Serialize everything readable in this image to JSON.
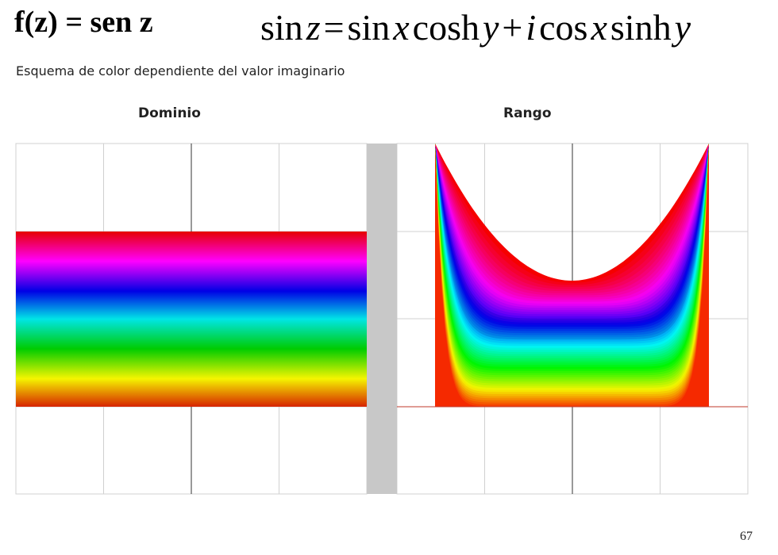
{
  "header": {
    "title": "f(z) = sen z",
    "formula": [
      "sin",
      "z",
      "=",
      "sin",
      "x",
      "cosh",
      "y",
      "+",
      "i",
      "cos",
      "x",
      "sinh",
      "y"
    ],
    "subtitle": "Esquema de color dependiente del valor imaginario"
  },
  "panels": [
    {
      "label": "Dominio"
    },
    {
      "label": "Rango"
    }
  ],
  "footer": {
    "page_number": "67"
  }
}
